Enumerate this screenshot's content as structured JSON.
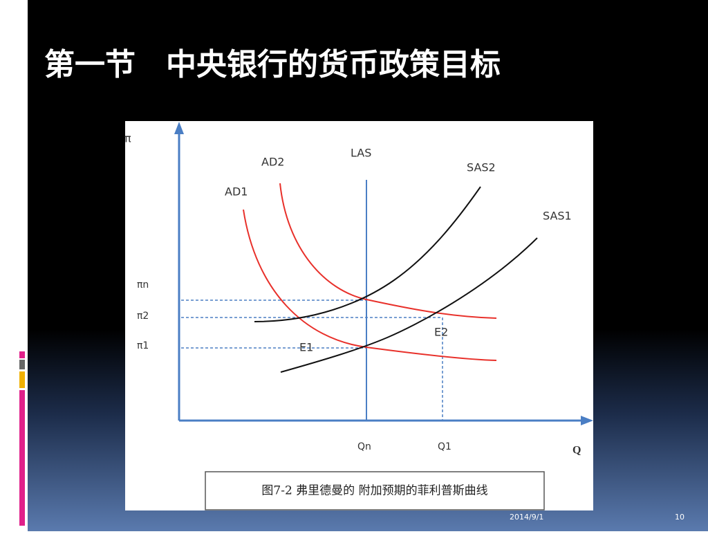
{
  "slide": {
    "title": "第一节　中央银行的货币政策目标",
    "date": "2014/9/1",
    "page_number": "10"
  },
  "figure": {
    "y_axis_label": "π",
    "x_axis_label": "Q",
    "curves": {
      "ad1": "AD1",
      "ad2": "AD2",
      "las": "LAS",
      "sas1": "SAS1",
      "sas2": "SAS2"
    },
    "y_levels": {
      "pi_n": "πn",
      "pi_2": "π2",
      "pi_1": "π1"
    },
    "points": {
      "e1": "E1",
      "e2": "E2"
    },
    "x_levels": {
      "q_n": "Qn",
      "q_1": "Q1"
    },
    "caption": "图7-2 弗里德曼的 附加预期的菲利普斯曲线"
  }
}
